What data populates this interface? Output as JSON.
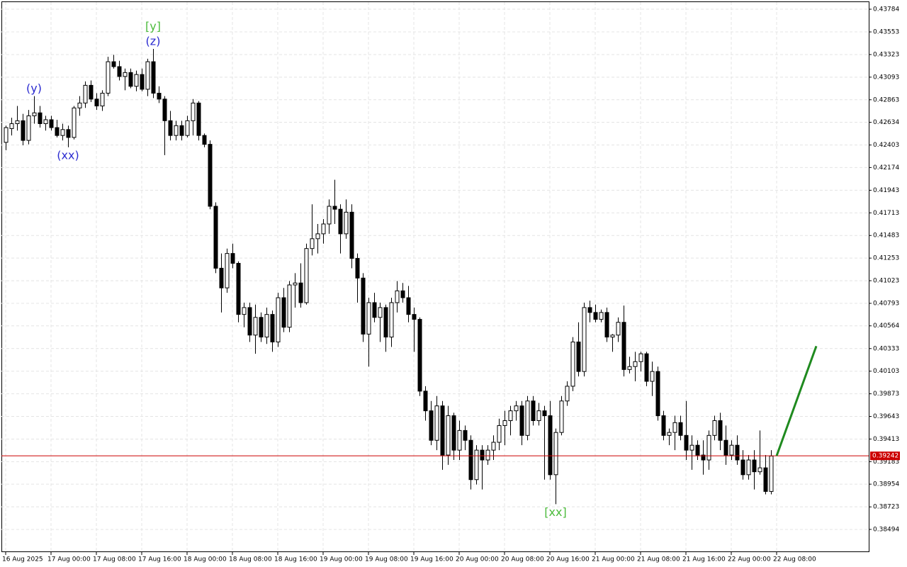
{
  "chart_data": {
    "type": "candlestick",
    "up_color": "#ffffff",
    "down_color": "#000000",
    "grid": true,
    "xlim": [
      -0.75,
      152.25
    ],
    "ylim": [
      0.38263,
      0.43856
    ],
    "yticks": [
      0.43784,
      0.43553,
      0.43323,
      0.43093,
      0.42863,
      0.42634,
      0.42403,
      0.42174,
      0.41943,
      0.41713,
      0.41483,
      0.41253,
      0.41023,
      0.40793,
      0.40564,
      0.40333,
      0.40103,
      0.39873,
      0.39643,
      0.39413,
      0.39183,
      0.38954,
      0.38723,
      0.38494
    ],
    "xticks": [
      {
        "value": 0,
        "label": "16 Aug 2025"
      },
      {
        "value": 8,
        "label": "17 Aug 00:00"
      },
      {
        "value": 16,
        "label": "17 Aug 08:00"
      },
      {
        "value": 24,
        "label": "17 Aug 16:00"
      },
      {
        "value": 32,
        "label": "18 Aug 00:00"
      },
      {
        "value": 40,
        "label": "18 Aug 08:00"
      },
      {
        "value": 48,
        "label": "18 Aug 16:00"
      },
      {
        "value": 56,
        "label": "19 Aug 00:00"
      },
      {
        "value": 64,
        "label": "19 Aug 08:00"
      },
      {
        "value": 72,
        "label": "19 Aug 16:00"
      },
      {
        "value": 80,
        "label": "20 Aug 00:00"
      },
      {
        "value": 88,
        "label": "20 Aug 08:00"
      },
      {
        "value": 96,
        "label": "20 Aug 16:00"
      },
      {
        "value": 104,
        "label": "21 Aug 00:00"
      },
      {
        "value": 112,
        "label": "21 Aug 08:00"
      },
      {
        "value": 120,
        "label": "21 Aug 16:00"
      },
      {
        "value": 128,
        "label": "22 Aug 00:00"
      },
      {
        "value": 136,
        "label": "22 Aug 08:00"
      }
    ],
    "current_price": 0.39242,
    "current_price_color": "#cc0000",
    "forecast": {
      "color": "#1f8a1f",
      "x": [
        136,
        143
      ],
      "values": [
        0.39242,
        0.40358
      ]
    },
    "annotations": [
      {
        "text": "(y)",
        "candle": 5,
        "position": "above",
        "color": "#2b2bd0"
      },
      {
        "text": "(xx)",
        "candle": 11,
        "position": "below",
        "color": "#2b2bd0"
      },
      {
        "text": "(z)",
        "candle": 26,
        "position": "above",
        "color": "#2b2bd0"
      },
      {
        "text": "[y]",
        "candle": 26,
        "position": "above",
        "color": "#4cbb3c"
      },
      {
        "text": "[xx]",
        "candle": 97,
        "position": "below",
        "color": "#4cbb3c"
      }
    ],
    "candles": [
      [
        0.4243,
        0.426,
        0.4235,
        0.4258
      ],
      [
        0.4257,
        0.4268,
        0.425,
        0.4262
      ],
      [
        0.4262,
        0.428,
        0.4255,
        0.4265
      ],
      [
        0.4265,
        0.4272,
        0.424,
        0.4245
      ],
      [
        0.4245,
        0.4276,
        0.4241,
        0.427
      ],
      [
        0.427,
        0.429,
        0.4262,
        0.4273
      ],
      [
        0.4273,
        0.428,
        0.4258,
        0.4262
      ],
      [
        0.4262,
        0.427,
        0.4255,
        0.4266
      ],
      [
        0.4266,
        0.427,
        0.4255,
        0.4258
      ],
      [
        0.4258,
        0.4266,
        0.4248,
        0.425
      ],
      [
        0.425,
        0.4262,
        0.4245,
        0.4256
      ],
      [
        0.4256,
        0.426,
        0.4238,
        0.4248
      ],
      [
        0.4248,
        0.428,
        0.4246,
        0.4278
      ],
      [
        0.4278,
        0.429,
        0.427,
        0.4283
      ],
      [
        0.4283,
        0.4305,
        0.4278,
        0.4301
      ],
      [
        0.4301,
        0.4306,
        0.4284,
        0.4287
      ],
      [
        0.4287,
        0.4293,
        0.4276,
        0.428
      ],
      [
        0.428,
        0.4296,
        0.4275,
        0.4293
      ],
      [
        0.4293,
        0.433,
        0.429,
        0.4325
      ],
      [
        0.4325,
        0.4332,
        0.4318,
        0.432
      ],
      [
        0.432,
        0.4326,
        0.4306,
        0.431
      ],
      [
        0.431,
        0.4318,
        0.4296,
        0.4314
      ],
      [
        0.4314,
        0.4318,
        0.4298,
        0.43
      ],
      [
        0.43,
        0.4316,
        0.4295,
        0.4312
      ],
      [
        0.4312,
        0.4318,
        0.4295,
        0.4297
      ],
      [
        0.4297,
        0.4328,
        0.429,
        0.4325
      ],
      [
        0.4325,
        0.4338,
        0.4288,
        0.4293
      ],
      [
        0.4293,
        0.43,
        0.4283,
        0.4287
      ],
      [
        0.4287,
        0.429,
        0.423,
        0.4265
      ],
      [
        0.4265,
        0.4275,
        0.4245,
        0.425
      ],
      [
        0.425,
        0.4265,
        0.4245,
        0.426
      ],
      [
        0.426,
        0.4265,
        0.4245,
        0.425
      ],
      [
        0.425,
        0.427,
        0.4248,
        0.4265
      ],
      [
        0.4265,
        0.4287,
        0.425,
        0.4283
      ],
      [
        0.4283,
        0.4285,
        0.4245,
        0.425
      ],
      [
        0.425,
        0.4252,
        0.4238,
        0.4241
      ],
      [
        0.4241,
        0.4245,
        0.4175,
        0.4178
      ],
      [
        0.4178,
        0.4182,
        0.411,
        0.4115
      ],
      [
        0.4115,
        0.413,
        0.407,
        0.4095
      ],
      [
        0.4095,
        0.4135,
        0.409,
        0.413
      ],
      [
        0.413,
        0.414,
        0.4115,
        0.412
      ],
      [
        0.412,
        0.4122,
        0.406,
        0.4068
      ],
      [
        0.4068,
        0.408,
        0.4055,
        0.4075
      ],
      [
        0.4075,
        0.408,
        0.404,
        0.4047
      ],
      [
        0.4047,
        0.4078,
        0.4028,
        0.4065
      ],
      [
        0.4065,
        0.407,
        0.404,
        0.4045
      ],
      [
        0.4045,
        0.4075,
        0.4038,
        0.4068
      ],
      [
        0.4068,
        0.4072,
        0.403,
        0.404
      ],
      [
        0.404,
        0.409,
        0.4035,
        0.4085
      ],
      [
        0.4085,
        0.4095,
        0.405,
        0.4055
      ],
      [
        0.4055,
        0.4102,
        0.405,
        0.4098
      ],
      [
        0.4098,
        0.411,
        0.4075,
        0.41
      ],
      [
        0.41,
        0.412,
        0.4075,
        0.408
      ],
      [
        0.408,
        0.414,
        0.4078,
        0.4135
      ],
      [
        0.4135,
        0.418,
        0.4128,
        0.4145
      ],
      [
        0.4145,
        0.416,
        0.413,
        0.415
      ],
      [
        0.415,
        0.4165,
        0.414,
        0.416
      ],
      [
        0.416,
        0.4185,
        0.415,
        0.4178
      ],
      [
        0.4178,
        0.4205,
        0.416,
        0.4175
      ],
      [
        0.4175,
        0.418,
        0.413,
        0.415
      ],
      [
        0.415,
        0.4185,
        0.4145,
        0.4172
      ],
      [
        0.4172,
        0.418,
        0.4115,
        0.4125
      ],
      [
        0.4125,
        0.413,
        0.408,
        0.4105
      ],
      [
        0.4105,
        0.411,
        0.404,
        0.4048
      ],
      [
        0.4048,
        0.4085,
        0.4015,
        0.408
      ],
      [
        0.408,
        0.409,
        0.406,
        0.4065
      ],
      [
        0.4065,
        0.408,
        0.404,
        0.4075
      ],
      [
        0.4075,
        0.4078,
        0.403,
        0.4045
      ],
      [
        0.4045,
        0.4085,
        0.4035,
        0.408
      ],
      [
        0.408,
        0.4102,
        0.407,
        0.4092
      ],
      [
        0.4092,
        0.41,
        0.408,
        0.4085
      ],
      [
        0.4085,
        0.4097,
        0.406,
        0.4068
      ],
      [
        0.4068,
        0.4075,
        0.403,
        0.4063
      ],
      [
        0.4063,
        0.4065,
        0.3985,
        0.399
      ],
      [
        0.399,
        0.3995,
        0.396,
        0.397
      ],
      [
        0.397,
        0.398,
        0.3935,
        0.394
      ],
      [
        0.394,
        0.3985,
        0.393,
        0.3975
      ],
      [
        0.3975,
        0.398,
        0.391,
        0.3925
      ],
      [
        0.3925,
        0.3975,
        0.3915,
        0.3965
      ],
      [
        0.3965,
        0.3968,
        0.392,
        0.393
      ],
      [
        0.393,
        0.396,
        0.392,
        0.395
      ],
      [
        0.395,
        0.3955,
        0.393,
        0.394
      ],
      [
        0.394,
        0.3945,
        0.389,
        0.39
      ],
      [
        0.39,
        0.3935,
        0.3895,
        0.393
      ],
      [
        0.393,
        0.3935,
        0.389,
        0.392
      ],
      [
        0.392,
        0.3935,
        0.3915,
        0.393
      ],
      [
        0.393,
        0.3945,
        0.392,
        0.3938
      ],
      [
        0.3938,
        0.3962,
        0.393,
        0.3955
      ],
      [
        0.3955,
        0.397,
        0.3935,
        0.396
      ],
      [
        0.396,
        0.3975,
        0.3945,
        0.397
      ],
      [
        0.397,
        0.398,
        0.396,
        0.3975
      ],
      [
        0.3975,
        0.398,
        0.3935,
        0.3945
      ],
      [
        0.3945,
        0.3985,
        0.394,
        0.398
      ],
      [
        0.398,
        0.3985,
        0.3955,
        0.396
      ],
      [
        0.396,
        0.3978,
        0.3955,
        0.397
      ],
      [
        0.397,
        0.3975,
        0.39,
        0.3965
      ],
      [
        0.3965,
        0.398,
        0.39,
        0.3905
      ],
      [
        0.3905,
        0.3952,
        0.3875,
        0.3948
      ],
      [
        0.3948,
        0.3985,
        0.3945,
        0.398
      ],
      [
        0.398,
        0.4,
        0.3975,
        0.3995
      ],
      [
        0.3995,
        0.4045,
        0.399,
        0.404
      ],
      [
        0.404,
        0.406,
        0.4005,
        0.401
      ],
      [
        0.401,
        0.408,
        0.4005,
        0.4075
      ],
      [
        0.4075,
        0.4082,
        0.406,
        0.407
      ],
      [
        0.407,
        0.4078,
        0.406,
        0.4063
      ],
      [
        0.4063,
        0.4073,
        0.406,
        0.407
      ],
      [
        0.407,
        0.4075,
        0.404,
        0.4045
      ],
      [
        0.4045,
        0.4048,
        0.403,
        0.4047
      ],
      [
        0.4047,
        0.4065,
        0.404,
        0.406
      ],
      [
        0.406,
        0.4077,
        0.4005,
        0.4012
      ],
      [
        0.4012,
        0.4025,
        0.4008,
        0.4015
      ],
      [
        0.4015,
        0.403,
        0.4,
        0.402
      ],
      [
        0.402,
        0.403,
        0.401,
        0.4028
      ],
      [
        0.4028,
        0.403,
        0.3995,
        0.4
      ],
      [
        0.4,
        0.402,
        0.3985,
        0.401
      ],
      [
        0.401,
        0.4015,
        0.396,
        0.3965
      ],
      [
        0.3965,
        0.397,
        0.394,
        0.3945
      ],
      [
        0.3945,
        0.3952,
        0.3935,
        0.3948
      ],
      [
        0.3948,
        0.3965,
        0.393,
        0.3958
      ],
      [
        0.3958,
        0.3965,
        0.394,
        0.3945
      ],
      [
        0.3945,
        0.398,
        0.392,
        0.393
      ],
      [
        0.393,
        0.3945,
        0.391,
        0.3935
      ],
      [
        0.3935,
        0.394,
        0.392,
        0.3925
      ],
      [
        0.3925,
        0.394,
        0.3905,
        0.392
      ],
      [
        0.392,
        0.395,
        0.391,
        0.3945
      ],
      [
        0.3945,
        0.3965,
        0.394,
        0.396
      ],
      [
        0.396,
        0.3968,
        0.393,
        0.394
      ],
      [
        0.394,
        0.3955,
        0.3915,
        0.3925
      ],
      [
        0.3925,
        0.394,
        0.392,
        0.3935
      ],
      [
        0.3935,
        0.3945,
        0.3915,
        0.392
      ],
      [
        0.392,
        0.393,
        0.39,
        0.3905
      ],
      [
        0.3905,
        0.3925,
        0.39,
        0.392
      ],
      [
        0.392,
        0.393,
        0.389,
        0.3908
      ],
      [
        0.3908,
        0.395,
        0.3905,
        0.3912
      ],
      [
        0.3912,
        0.3925,
        0.3885,
        0.3888
      ],
      [
        0.3888,
        0.393,
        0.3885,
        0.3924
      ]
    ]
  }
}
